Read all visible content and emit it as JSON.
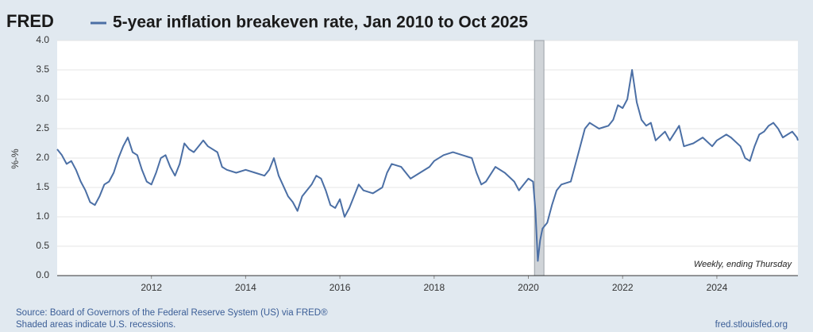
{
  "chart_data": {
    "type": "line",
    "logo": "FRED",
    "title": "5-year inflation breakeven rate, Jan 2010 to Oct 2025",
    "y_label": "%-%",
    "note": "Weekly, ending Thursday",
    "source": "Source: Board of Governors of the Federal Reserve System (US) via FRED®",
    "recession_note": "Shaded areas indicate U.S. recessions.",
    "site": "fred.stlouisfed.org",
    "recessions": [
      [
        2020.13,
        2020.33
      ]
    ],
    "grid": true,
    "xlim": [
      2010,
      2025.72
    ],
    "xticks": [
      2012,
      2014,
      2016,
      2018,
      2020,
      2022,
      2024
    ],
    "ylim": [
      0,
      4
    ],
    "yticks": [
      {
        "value": 0,
        "label": "0.0"
      },
      {
        "value": 0.5,
        "label": "0.5"
      },
      {
        "value": 1,
        "label": "1.0"
      },
      {
        "value": 1.5,
        "label": "1.5"
      },
      {
        "value": 2,
        "label": "2.0"
      },
      {
        "value": 2.5,
        "label": "2.5"
      },
      {
        "value": 3,
        "label": "3.0"
      },
      {
        "value": 3.5,
        "label": "3.5"
      },
      {
        "value": 4,
        "label": "4.0"
      }
    ],
    "x": [
      2010.0,
      2010.1,
      2010.2,
      2010.3,
      2010.4,
      2010.5,
      2010.6,
      2010.7,
      2010.8,
      2010.9,
      2011.0,
      2011.1,
      2011.2,
      2011.3,
      2011.4,
      2011.5,
      2011.6,
      2011.7,
      2011.8,
      2011.9,
      2012.0,
      2012.1,
      2012.2,
      2012.3,
      2012.4,
      2012.5,
      2012.6,
      2012.7,
      2012.8,
      2012.9,
      2013.0,
      2013.1,
      2013.2,
      2013.4,
      2013.5,
      2013.6,
      2013.8,
      2014.0,
      2014.2,
      2014.4,
      2014.5,
      2014.6,
      2014.7,
      2014.9,
      2015.0,
      2015.1,
      2015.2,
      2015.4,
      2015.5,
      2015.6,
      2015.7,
      2015.8,
      2015.9,
      2016.0,
      2016.1,
      2016.2,
      2016.3,
      2016.4,
      2016.5,
      2016.7,
      2016.9,
      2017.0,
      2017.1,
      2017.3,
      2017.5,
      2017.7,
      2017.9,
      2018.0,
      2018.2,
      2018.4,
      2018.6,
      2018.8,
      2018.9,
      2019.0,
      2019.1,
      2019.3,
      2019.5,
      2019.7,
      2019.8,
      2019.9,
      2020.0,
      2020.1,
      2020.15,
      2020.2,
      2020.25,
      2020.3,
      2020.4,
      2020.5,
      2020.6,
      2020.7,
      2020.9,
      2021.0,
      2021.1,
      2021.2,
      2021.3,
      2021.4,
      2021.5,
      2021.7,
      2021.8,
      2021.9,
      2022.0,
      2022.1,
      2022.2,
      2022.3,
      2022.4,
      2022.5,
      2022.6,
      2022.7,
      2022.9,
      2023.0,
      2023.2,
      2023.3,
      2023.5,
      2023.7,
      2023.9,
      2024.0,
      2024.2,
      2024.3,
      2024.5,
      2024.6,
      2024.7,
      2024.8,
      2024.9,
      2025.0,
      2025.1,
      2025.2,
      2025.3,
      2025.4,
      2025.5,
      2025.6,
      2025.7,
      2025.72
    ],
    "series": [
      {
        "color": "#4b6fa5",
        "values": [
          2.15,
          2.05,
          1.9,
          1.95,
          1.8,
          1.6,
          1.45,
          1.25,
          1.2,
          1.35,
          1.55,
          1.6,
          1.75,
          2.0,
          2.2,
          2.35,
          2.1,
          2.05,
          1.8,
          1.6,
          1.55,
          1.75,
          2.0,
          2.05,
          1.85,
          1.7,
          1.9,
          2.25,
          2.15,
          2.1,
          2.2,
          2.3,
          2.2,
          2.1,
          1.85,
          1.8,
          1.75,
          1.8,
          1.75,
          1.7,
          1.8,
          2.0,
          1.7,
          1.35,
          1.25,
          1.1,
          1.35,
          1.55,
          1.7,
          1.65,
          1.45,
          1.2,
          1.15,
          1.3,
          1.0,
          1.15,
          1.35,
          1.55,
          1.45,
          1.4,
          1.5,
          1.75,
          1.9,
          1.85,
          1.65,
          1.75,
          1.85,
          1.95,
          2.05,
          2.1,
          2.05,
          2.0,
          1.75,
          1.55,
          1.6,
          1.85,
          1.75,
          1.6,
          1.45,
          1.55,
          1.65,
          1.6,
          1.1,
          0.25,
          0.6,
          0.8,
          0.9,
          1.2,
          1.45,
          1.55,
          1.6,
          1.9,
          2.2,
          2.5,
          2.6,
          2.55,
          2.5,
          2.55,
          2.65,
          2.9,
          2.85,
          3.0,
          3.5,
          2.95,
          2.65,
          2.55,
          2.6,
          2.3,
          2.45,
          2.3,
          2.55,
          2.2,
          2.25,
          2.35,
          2.2,
          2.3,
          2.4,
          2.35,
          2.2,
          2.0,
          1.95,
          2.2,
          2.4,
          2.45,
          2.55,
          2.6,
          2.5,
          2.35,
          2.4,
          2.45,
          2.35,
          2.3
        ]
      }
    ]
  }
}
